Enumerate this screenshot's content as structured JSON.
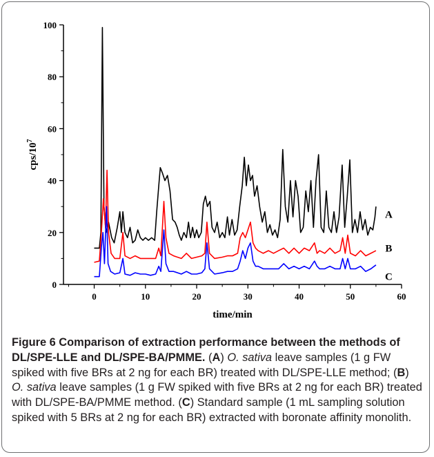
{
  "chart_data": {
    "type": "line",
    "xlabel": "time/min",
    "ylabel_base": "cps/10",
    "ylabel_exp": "7",
    "xlim": [
      -6,
      60
    ],
    "ylim": [
      0,
      100
    ],
    "x_ticks": [
      "0",
      "10",
      "20",
      "30",
      "40",
      "50",
      "60"
    ],
    "y_ticks": [
      "0",
      "20",
      "40",
      "60",
      "80",
      "100"
    ],
    "series": [
      {
        "name": "A",
        "color": "#000000",
        "points": [
          [
            0,
            14
          ],
          [
            1,
            14
          ],
          [
            1.3,
            20
          ],
          [
            1.6,
            99
          ],
          [
            1.9,
            30
          ],
          [
            2.3,
            20
          ],
          [
            2.8,
            24
          ],
          [
            3.4,
            18
          ],
          [
            3.9,
            16
          ],
          [
            4.5,
            22
          ],
          [
            5,
            28
          ],
          [
            5.3,
            20
          ],
          [
            5.6,
            28
          ],
          [
            6,
            20
          ],
          [
            6.5,
            18
          ],
          [
            7,
            22
          ],
          [
            7.5,
            16
          ],
          [
            8,
            17
          ],
          [
            8.5,
            21
          ],
          [
            9,
            18
          ],
          [
            9.5,
            17
          ],
          [
            10,
            18
          ],
          [
            10.6,
            17
          ],
          [
            11.2,
            18
          ],
          [
            11.8,
            17
          ],
          [
            12.2,
            28
          ],
          [
            12.6,
            38
          ],
          [
            12.9,
            45
          ],
          [
            13.3,
            43
          ],
          [
            13.8,
            40
          ],
          [
            14.3,
            42
          ],
          [
            14.8,
            36
          ],
          [
            15.3,
            25
          ],
          [
            15.8,
            24
          ],
          [
            16.2,
            22
          ],
          [
            16.6,
            19
          ],
          [
            17,
            17
          ],
          [
            17.5,
            20
          ],
          [
            18,
            18
          ],
          [
            18.4,
            24
          ],
          [
            18.8,
            18
          ],
          [
            19.2,
            22
          ],
          [
            19.6,
            18
          ],
          [
            20,
            21
          ],
          [
            20.4,
            18
          ],
          [
            20.9,
            20
          ],
          [
            21.3,
            31
          ],
          [
            21.7,
            34
          ],
          [
            22.1,
            30
          ],
          [
            22.6,
            32
          ],
          [
            23,
            22
          ],
          [
            23.5,
            20
          ],
          [
            24,
            24
          ],
          [
            24.5,
            18
          ],
          [
            25,
            20
          ],
          [
            25.5,
            18
          ],
          [
            26,
            26
          ],
          [
            26.4,
            19
          ],
          [
            26.9,
            25
          ],
          [
            27.4,
            19
          ],
          [
            27.9,
            21
          ],
          [
            28.4,
            30
          ],
          [
            28.9,
            38
          ],
          [
            29.3,
            49
          ],
          [
            29.7,
            38
          ],
          [
            30.1,
            46
          ],
          [
            30.5,
            40
          ],
          [
            30.9,
            42
          ],
          [
            31.3,
            34
          ],
          [
            31.8,
            38
          ],
          [
            32.3,
            30
          ],
          [
            32.8,
            24
          ],
          [
            33.3,
            28
          ],
          [
            33.8,
            20
          ],
          [
            34.3,
            23
          ],
          [
            34.8,
            19
          ],
          [
            35.3,
            21
          ],
          [
            35.8,
            18
          ],
          [
            36.3,
            25
          ],
          [
            36.8,
            52
          ],
          [
            37.3,
            30
          ],
          [
            37.8,
            24
          ],
          [
            38.3,
            40
          ],
          [
            38.8,
            26
          ],
          [
            39.3,
            40
          ],
          [
            39.8,
            34
          ],
          [
            40.3,
            20
          ],
          [
            40.8,
            22
          ],
          [
            41.3,
            36
          ],
          [
            41.8,
            28
          ],
          [
            42.3,
            40
          ],
          [
            42.8,
            22
          ],
          [
            43.3,
            40
          ],
          [
            43.8,
            50
          ],
          [
            44.3,
            22
          ],
          [
            44.8,
            20
          ],
          [
            45.3,
            36
          ],
          [
            45.8,
            22
          ],
          [
            46.3,
            20
          ],
          [
            46.8,
            28
          ],
          [
            47.3,
            20
          ],
          [
            47.8,
            26
          ],
          [
            48.4,
            46
          ],
          [
            48.9,
            22
          ],
          [
            49.4,
            34
          ],
          [
            49.9,
            48
          ],
          [
            50.4,
            20
          ],
          [
            50.9,
            25
          ],
          [
            51.4,
            20
          ],
          [
            51.9,
            28
          ],
          [
            52.4,
            21
          ],
          [
            52.9,
            25
          ],
          [
            53.4,
            19
          ],
          [
            53.9,
            22
          ],
          [
            54.4,
            21
          ],
          [
            54.8,
            26
          ],
          [
            55,
            30
          ]
        ]
      },
      {
        "name": "B",
        "color": "#ff0000",
        "points": [
          [
            0,
            8.5
          ],
          [
            1,
            9
          ],
          [
            1.4,
            20
          ],
          [
            1.8,
            33
          ],
          [
            2.2,
            22
          ],
          [
            2.5,
            44
          ],
          [
            2.8,
            20
          ],
          [
            3.3,
            12
          ],
          [
            4,
            10
          ],
          [
            5,
            10
          ],
          [
            5.6,
            20
          ],
          [
            6,
            11
          ],
          [
            7,
            10
          ],
          [
            8,
            11
          ],
          [
            9,
            10
          ],
          [
            10,
            10
          ],
          [
            11,
            10
          ],
          [
            12,
            10
          ],
          [
            12.6,
            14
          ],
          [
            13,
            11
          ],
          [
            13.6,
            32
          ],
          [
            14,
            18
          ],
          [
            14.6,
            12
          ],
          [
            15.5,
            11
          ],
          [
            17,
            10
          ],
          [
            18,
            12
          ],
          [
            19,
            10
          ],
          [
            20,
            10.5
          ],
          [
            21,
            11
          ],
          [
            21.6,
            12
          ],
          [
            22,
            24
          ],
          [
            22.5,
            12
          ],
          [
            23.5,
            10
          ],
          [
            25,
            10.5
          ],
          [
            26,
            11
          ],
          [
            27,
            11
          ],
          [
            28,
            12
          ],
          [
            28.5,
            18
          ],
          [
            29,
            20
          ],
          [
            29.5,
            18
          ],
          [
            30,
            21
          ],
          [
            30.5,
            24
          ],
          [
            31,
            16
          ],
          [
            31.5,
            14
          ],
          [
            32,
            13
          ],
          [
            33,
            12
          ],
          [
            34,
            13
          ],
          [
            35,
            12
          ],
          [
            36,
            13
          ],
          [
            37,
            14
          ],
          [
            38,
            12
          ],
          [
            39,
            14
          ],
          [
            40,
            12
          ],
          [
            41,
            14
          ],
          [
            42,
            13
          ],
          [
            43,
            16
          ],
          [
            43.5,
            12
          ],
          [
            44,
            13
          ],
          [
            45,
            12
          ],
          [
            46,
            14
          ],
          [
            47,
            12
          ],
          [
            48,
            13
          ],
          [
            48.5,
            18
          ],
          [
            49,
            12
          ],
          [
            49.5,
            19
          ],
          [
            50,
            12
          ],
          [
            51,
            11
          ],
          [
            52,
            13
          ],
          [
            53,
            11
          ],
          [
            54,
            12
          ],
          [
            55,
            13
          ]
        ]
      },
      {
        "name": "C",
        "color": "#0000ff",
        "points": [
          [
            0,
            3
          ],
          [
            1,
            3
          ],
          [
            1.4,
            14
          ],
          [
            1.7,
            20
          ],
          [
            2,
            8
          ],
          [
            2.4,
            30
          ],
          [
            2.7,
            8
          ],
          [
            3.2,
            5
          ],
          [
            4,
            4
          ],
          [
            5,
            4.5
          ],
          [
            5.6,
            10
          ],
          [
            6,
            4
          ],
          [
            7,
            3.5
          ],
          [
            8,
            4.5
          ],
          [
            9,
            4
          ],
          [
            10,
            4
          ],
          [
            11,
            3.5
          ],
          [
            12,
            4
          ],
          [
            12.6,
            7
          ],
          [
            13,
            5
          ],
          [
            13.6,
            21
          ],
          [
            14,
            8
          ],
          [
            14.6,
            5
          ],
          [
            15.5,
            5
          ],
          [
            17,
            4
          ],
          [
            18,
            5
          ],
          [
            19,
            4
          ],
          [
            20,
            4
          ],
          [
            21,
            4.5
          ],
          [
            21.6,
            6
          ],
          [
            22,
            16
          ],
          [
            22.5,
            6
          ],
          [
            23.5,
            4
          ],
          [
            25,
            4.5
          ],
          [
            26,
            5
          ],
          [
            27,
            5
          ],
          [
            28,
            6
          ],
          [
            28.5,
            9
          ],
          [
            29,
            13
          ],
          [
            29.5,
            10
          ],
          [
            30,
            14
          ],
          [
            30.5,
            16
          ],
          [
            31,
            9
          ],
          [
            31.5,
            7
          ],
          [
            32,
            7
          ],
          [
            33,
            6
          ],
          [
            34,
            6
          ],
          [
            35,
            6
          ],
          [
            36,
            6
          ],
          [
            37,
            8
          ],
          [
            38,
            6
          ],
          [
            39,
            7
          ],
          [
            40,
            6
          ],
          [
            41,
            7
          ],
          [
            42,
            6
          ],
          [
            43,
            9
          ],
          [
            43.5,
            7
          ],
          [
            44,
            6
          ],
          [
            45,
            6
          ],
          [
            46,
            7
          ],
          [
            47,
            6
          ],
          [
            48,
            6
          ],
          [
            48.5,
            10
          ],
          [
            49,
            6
          ],
          [
            49.5,
            10
          ],
          [
            50,
            6
          ],
          [
            51,
            6
          ],
          [
            52,
            7
          ],
          [
            53,
            5
          ],
          [
            54,
            6
          ],
          [
            55,
            7.5
          ]
        ]
      }
    ]
  },
  "caption": {
    "title": "Figure 6 Comparison of extraction performance between the methods of DL/SPE-LLE and DL/SPE-BA/PMME.",
    "part_a_open": " (",
    "part_a_letter": "A",
    "part_a_close": ") ",
    "part_a_species": "O. sativa",
    "part_a_text": " leave samples (1 g FW spiked with five BRs at 2 ng for each BR) treated with DL/SPE-LLE method; (",
    "part_b_letter": "B",
    "part_b_close": ") ",
    "part_b_species": "O. sativa",
    "part_b_text": " leave samples (1 g FW spiked with five BRs at 2 ng for each BR) treated with DL/SPE-BA/PMME method. (",
    "part_c_letter": "C",
    "part_c_text": ") Standard sample (1 mL sampling solution spiked with 5 BRs at 2 ng for each BR) extracted with boronate affinity monolith."
  }
}
